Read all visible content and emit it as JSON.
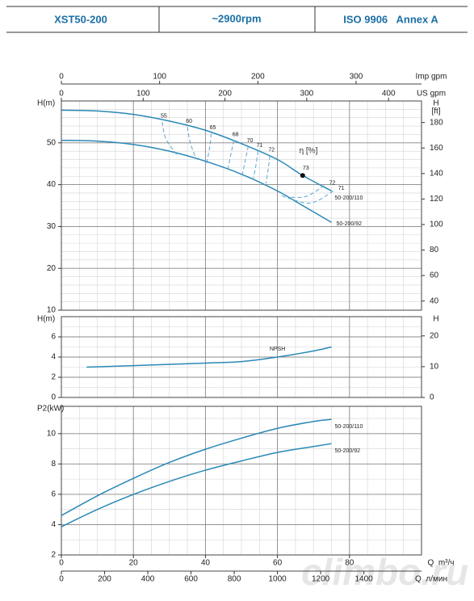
{
  "header": {
    "cells": [
      "XST50-200",
      "~2900rpm",
      "ISO 9906   Annex A"
    ]
  },
  "watermark": "climbo.ru",
  "chart_data": [
    {
      "type": "line",
      "ylabel": "H(m)",
      "y2label": "H",
      "y2unit": "[ft]",
      "annotation": "η [%]",
      "xlim": [
        0,
        100
      ],
      "xticks": [
        0,
        20,
        40,
        60,
        80
      ],
      "x_tick_labels": false,
      "ylim": [
        10,
        60
      ],
      "yticks": [
        10,
        20,
        30,
        40,
        50
      ],
      "y2lim": [
        32.8,
        196.9
      ],
      "y2ticks": [
        40,
        60,
        80,
        100,
        120,
        140,
        160,
        180
      ],
      "minor_grid": {
        "x": 5,
        "y": 2
      },
      "secondary_x_axes": [
        {
          "label": "Imp gpm",
          "lim": [
            0,
            366.6
          ],
          "ticks": [
            0,
            100,
            200,
            300
          ],
          "position": "top"
        },
        {
          "label": "US gpm",
          "lim": [
            0,
            440.3
          ],
          "ticks": [
            0,
            100,
            200,
            300,
            400
          ],
          "position": "top-inner"
        }
      ],
      "series": [
        {
          "name": "50-200/110",
          "color": "#2a88b6",
          "label_position": "end-below",
          "x": [
            0,
            10,
            20,
            30,
            40,
            50,
            60,
            67,
            75
          ],
          "values": [
            57.8,
            57.6,
            56.8,
            55.2,
            53.0,
            49.8,
            46.0,
            42.2,
            38.5
          ]
        },
        {
          "name": "50-200/92",
          "color": "#2a88b6",
          "label_position": "end",
          "x": [
            0,
            10,
            20,
            30,
            40,
            50,
            60,
            67,
            75
          ],
          "values": [
            50.6,
            50.4,
            49.6,
            48.0,
            45.6,
            42.5,
            38.5,
            35.0,
            31.0
          ]
        },
        {
          "name": "55",
          "color": "#5aa6d2",
          "dashed": true,
          "label_position": "start-above",
          "x": [
            28,
            29,
            32
          ],
          "values": [
            55.0,
            51.0,
            47.2
          ]
        },
        {
          "name": "60",
          "color": "#5aa6d2",
          "dashed": true,
          "label_position": "start-above",
          "x": [
            35,
            35.8,
            37.4
          ],
          "values": [
            53.8,
            50.0,
            46.2
          ]
        },
        {
          "name": "65",
          "color": "#5aa6d2",
          "dashed": true,
          "label_position": "start-above",
          "x": [
            41.6,
            41.2,
            40.3
          ],
          "values": [
            52.2,
            49.0,
            45.0
          ]
        },
        {
          "name": "68",
          "color": "#5aa6d2",
          "dashed": true,
          "label_position": "start-above",
          "x": [
            47.9,
            47,
            46.1
          ],
          "values": [
            50.6,
            47.0,
            43.0
          ]
        },
        {
          "name": "70",
          "color": "#5aa6d2",
          "dashed": true,
          "label_position": "start-above",
          "x": [
            51.9,
            51,
            50.1
          ],
          "values": [
            49.2,
            45.5,
            41.8
          ]
        },
        {
          "name": "71",
          "color": "#5aa6d2",
          "dashed": true,
          "label_position": "start-above",
          "x": [
            54.6,
            54,
            53.2
          ],
          "values": [
            48.0,
            44.5,
            41.2
          ]
        },
        {
          "name": "72",
          "color": "#5aa6d2",
          "dashed": true,
          "label_position": "start-above",
          "x": [
            57.9,
            57.4,
            56.8
          ],
          "values": [
            46.9,
            43.5,
            40.3
          ]
        },
        {
          "name": "72",
          "color": "#5aa6d2",
          "dashed": true,
          "label_position": "start-right",
          "x": [
            73,
            68,
            63
          ],
          "values": [
            39.8,
            37.2,
            37.0
          ]
        },
        {
          "name": "71",
          "color": "#5aa6d2",
          "dashed": true,
          "label_position": "start-right",
          "x": [
            75.5,
            69,
            61
          ],
          "values": [
            38.5,
            35.6,
            37.4
          ]
        }
      ],
      "points": [
        {
          "name": "73",
          "x": 67,
          "y": 42.2,
          "color": "#111111"
        }
      ]
    },
    {
      "type": "line",
      "ylabel": "H(m)",
      "y2label": "H",
      "xlim": [
        0,
        100
      ],
      "xticks": [
        0,
        20,
        40,
        60,
        80
      ],
      "x_tick_labels": false,
      "ylim": [
        0,
        8
      ],
      "yticks": [
        0,
        2,
        4,
        6
      ],
      "y2lim": [
        0,
        26.25
      ],
      "y2ticks": [
        0,
        10,
        20
      ],
      "minor_grid": {
        "x": 5,
        "y": 1
      },
      "series": [
        {
          "name": "NPSH",
          "color": "#2a88b6",
          "label_position": "above-mid",
          "x": [
            7,
            20,
            40,
            50,
            60,
            70,
            75
          ],
          "values": [
            3.0,
            3.15,
            3.4,
            3.55,
            4.0,
            4.6,
            5.0
          ]
        }
      ]
    },
    {
      "type": "line",
      "ylabel": "P2(kW)",
      "xlim": [
        0,
        100
      ],
      "xticks": [
        0,
        20,
        40,
        60,
        80
      ],
      "x_tick_labels": true,
      "xlabel": "Q  m³/ч",
      "ylim": [
        2,
        11.8
      ],
      "yticks": [
        2,
        4,
        6,
        8,
        10
      ],
      "minor_grid": {
        "x": 5,
        "y": 1
      },
      "secondary_x_axes": [
        {
          "label": "Q  л/мин",
          "lim": [
            0,
            1666.7
          ],
          "ticks": [
            0,
            200,
            400,
            600,
            800,
            1000,
            1200,
            1400
          ],
          "position": "bottom-outer"
        }
      ],
      "series": [
        {
          "name": "50-200/110",
          "color": "#2a88b6",
          "label_position": "end-below",
          "x": [
            0,
            10,
            20,
            30,
            40,
            50,
            60,
            70,
            75
          ],
          "values": [
            4.6,
            5.9,
            7.05,
            8.1,
            8.97,
            9.7,
            10.35,
            10.8,
            10.94
          ]
        },
        {
          "name": "50-200/92",
          "color": "#2a88b6",
          "label_position": "end-below",
          "x": [
            0,
            10,
            20,
            30,
            40,
            50,
            60,
            70,
            75
          ],
          "values": [
            3.86,
            5.0,
            5.99,
            6.85,
            7.59,
            8.2,
            8.76,
            9.15,
            9.34
          ]
        }
      ]
    }
  ]
}
